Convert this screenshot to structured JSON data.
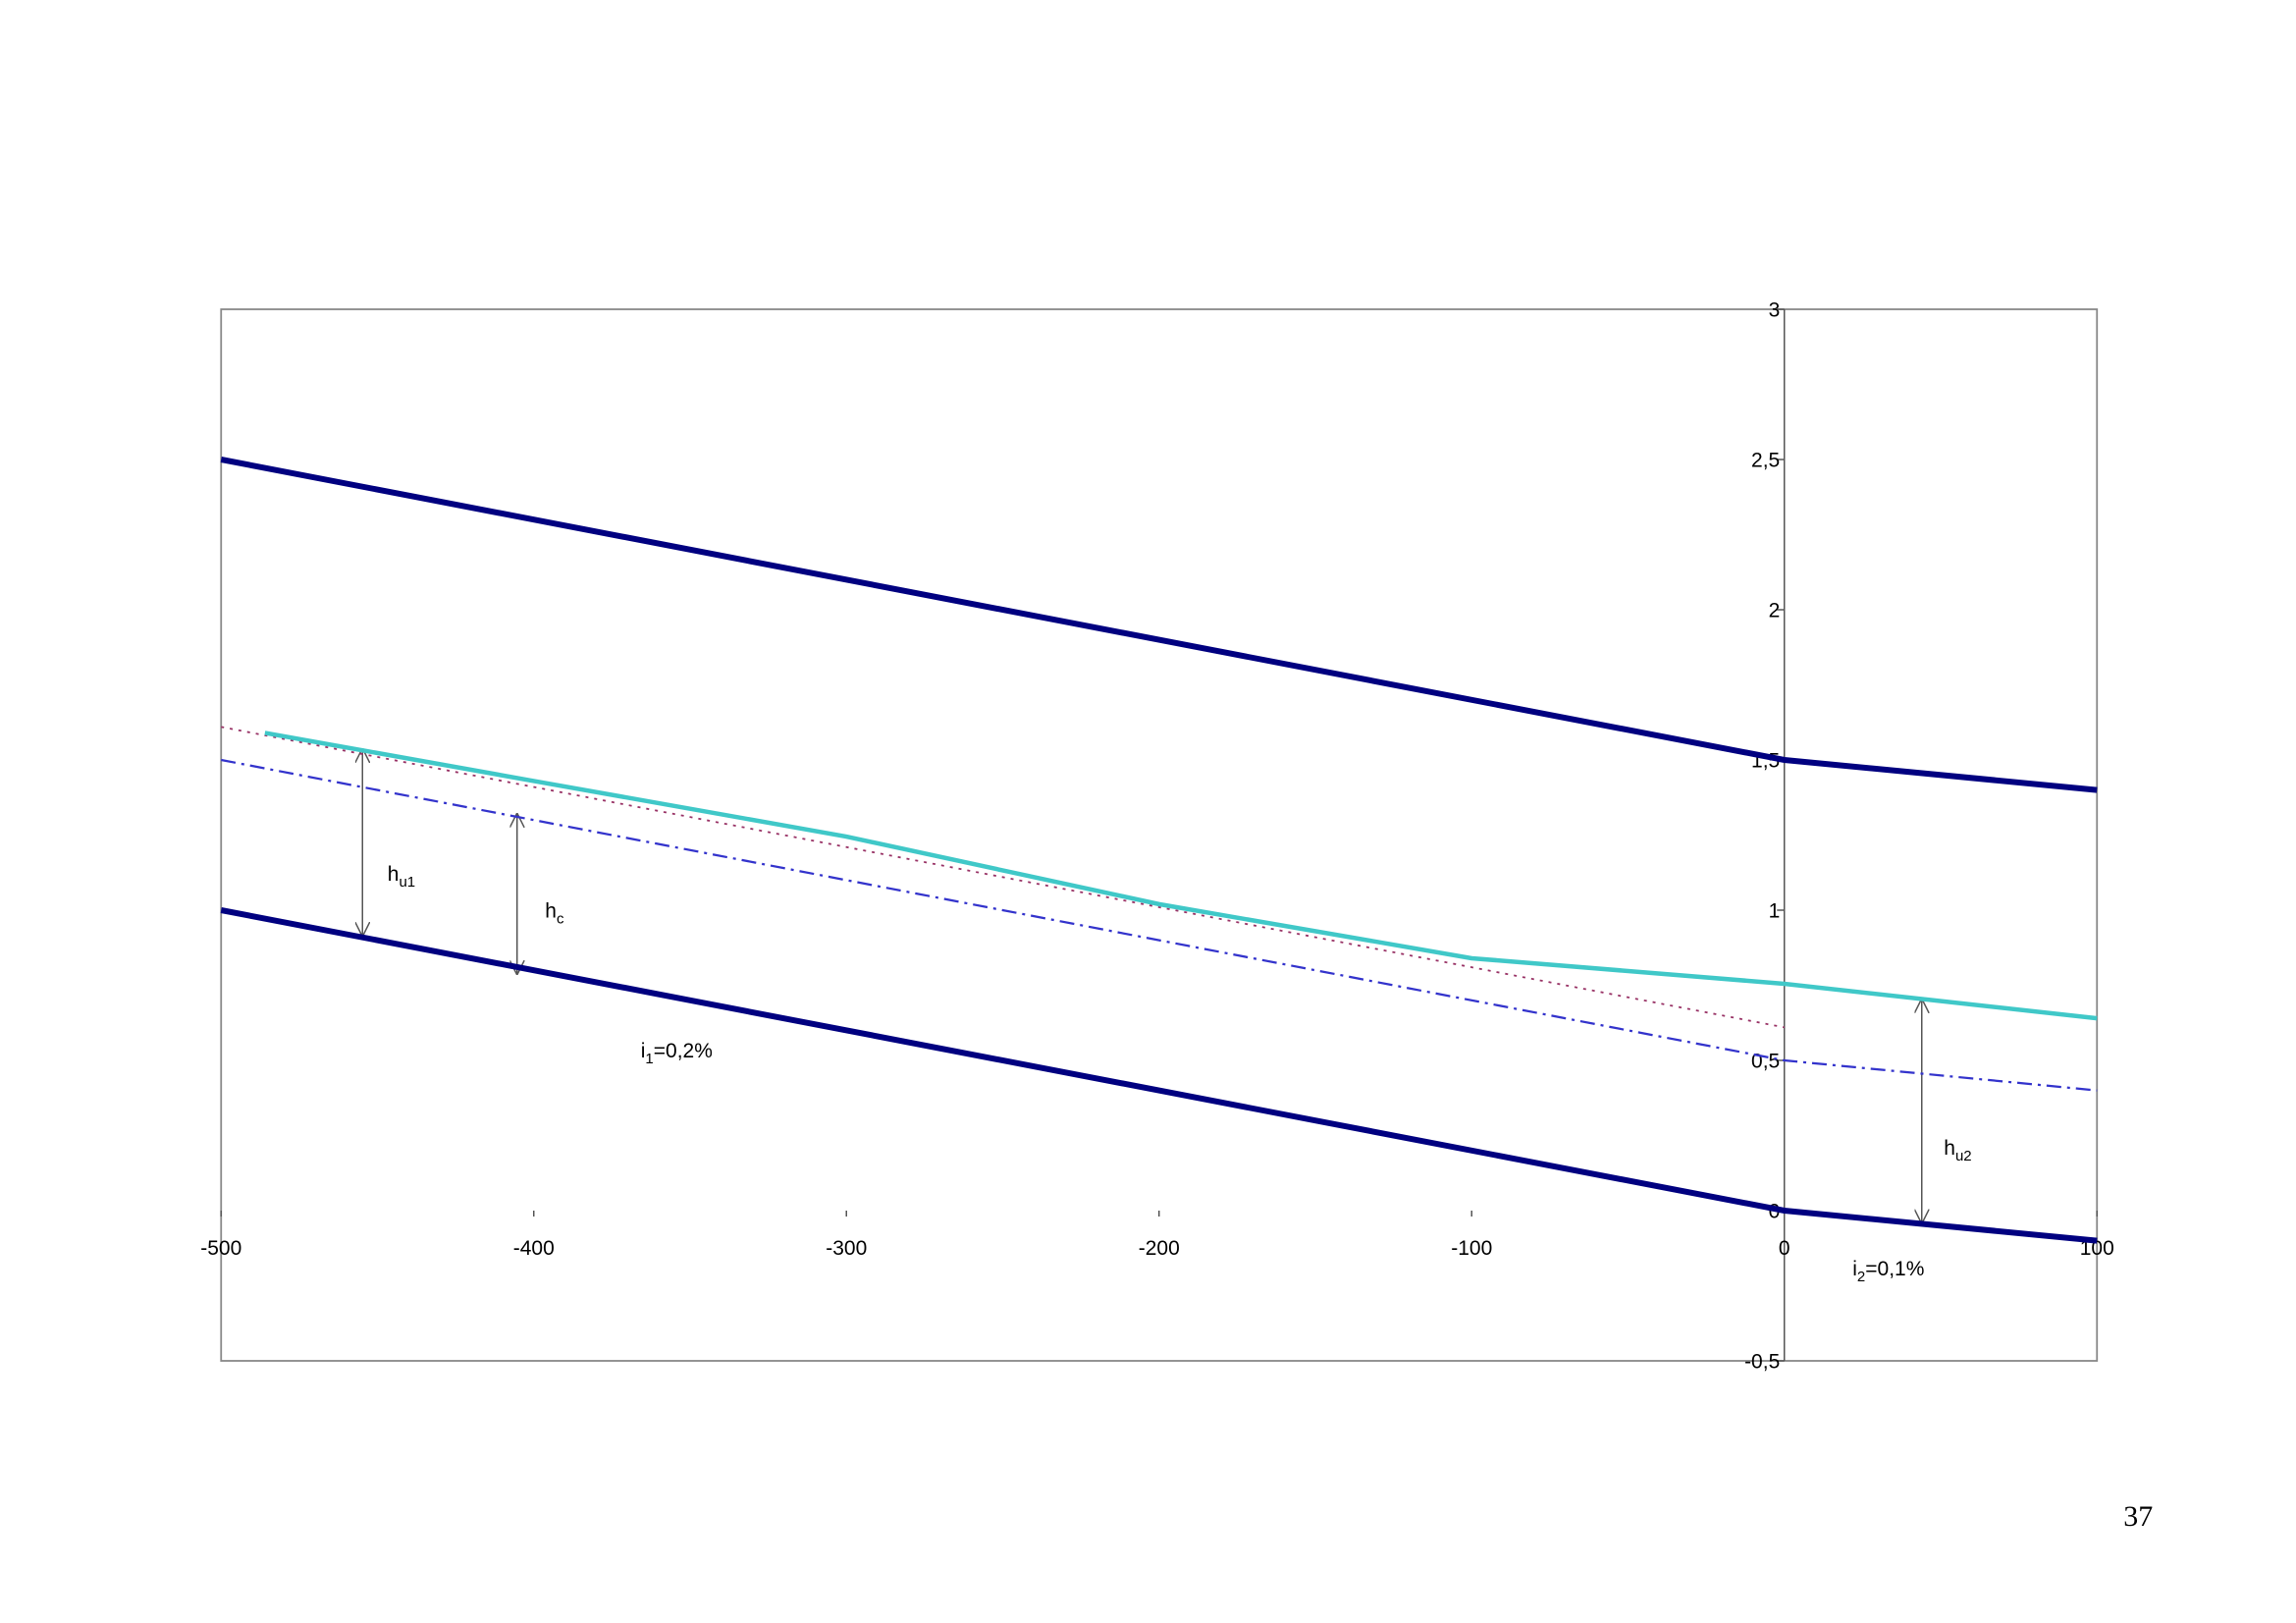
{
  "chart_data": {
    "type": "line",
    "xlim": [
      -500,
      100
    ],
    "xticks": [
      -500,
      -400,
      -300,
      -200,
      -100,
      0,
      100
    ],
    "ylim": [
      -0.5,
      3
    ],
    "yticks": [
      {
        "value": -0.5,
        "label": "-0,5"
      },
      0,
      {
        "value": 0.5,
        "label": "0,5"
      },
      1,
      {
        "value": 1.5,
        "label": "1,5"
      },
      2,
      {
        "value": 2.5,
        "label": "2,5"
      },
      3
    ],
    "series": [
      {
        "color": "#000080",
        "width": 4,
        "dash": "solid",
        "x": [
          -500,
          0,
          100
        ],
        "values": [
          2.5,
          1.5,
          1.4
        ]
      },
      {
        "color": "#000080",
        "width": 4,
        "dash": "solid",
        "x": [
          -500,
          0,
          100
        ],
        "values": [
          1,
          0,
          -0.1
        ]
      },
      {
        "color": "#993366",
        "width": 1.2,
        "dash": "dotted",
        "x": [
          -500,
          0
        ],
        "values": [
          1.61,
          0.61
        ]
      },
      {
        "color": "#3333cc",
        "width": 1.5,
        "dash": "dashdot",
        "x": [
          -500,
          0,
          100
        ],
        "values": [
          1.5,
          0.5,
          0.4
        ]
      },
      {
        "color": "#40c8c8",
        "width": 3,
        "dash": "solid",
        "x": [
          -486,
          -400,
          -300,
          -200,
          -100,
          0,
          100
        ],
        "values": [
          1.59,
          1.43,
          1.245,
          1.02,
          0.84,
          0.755,
          0.64
        ]
      }
    ],
    "annotations": [
      {
        "base": "h",
        "sub": "u1",
        "rest": ""
      },
      {
        "base": "h",
        "sub": "c",
        "rest": ""
      },
      {
        "base": "i",
        "sub": "1",
        "rest": "=0,2%"
      },
      {
        "base": "h",
        "sub": "u2",
        "rest": ""
      },
      {
        "base": "i",
        "sub": "2",
        "rest": "=0,1%"
      }
    ]
  },
  "page_number": "37"
}
